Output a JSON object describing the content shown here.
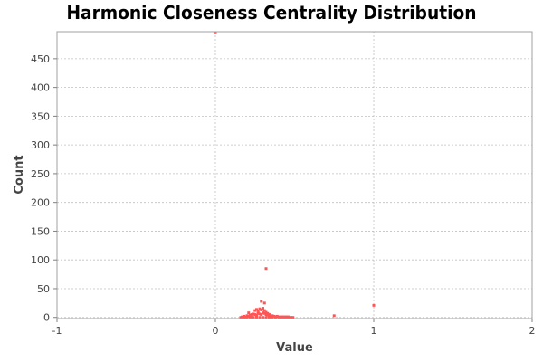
{
  "chart_data": {
    "type": "scatter",
    "title": "Harmonic Closeness Centrality Distribution",
    "xlabel": "Value",
    "ylabel": "Count",
    "xlim": [
      -1,
      2
    ],
    "ylim": [
      -2,
      497
    ],
    "x_ticks": [
      -1,
      0,
      1,
      2
    ],
    "y_ticks": [
      0,
      50,
      100,
      150,
      200,
      250,
      300,
      350,
      400,
      450
    ],
    "grid": true,
    "legend": "none",
    "colors": {
      "points": "#ff5555",
      "grid": "#c0c0c0",
      "plot_background": "#ffffff",
      "axis": "#808080"
    },
    "points": [
      [
        0.0,
        495
      ],
      [
        0.32,
        85
      ],
      [
        0.29,
        28
      ],
      [
        0.31,
        25
      ],
      [
        1.0,
        21
      ],
      [
        0.75,
        3
      ],
      [
        0.21,
        8
      ],
      [
        0.23,
        5
      ],
      [
        0.25,
        12
      ],
      [
        0.26,
        14
      ],
      [
        0.27,
        10
      ],
      [
        0.28,
        15
      ],
      [
        0.29,
        13
      ],
      [
        0.3,
        16
      ],
      [
        0.31,
        12
      ],
      [
        0.32,
        9
      ],
      [
        0.33,
        7
      ],
      [
        0.34,
        5
      ],
      [
        0.17,
        1
      ],
      [
        0.18,
        2
      ],
      [
        0.19,
        1
      ],
      [
        0.2,
        3
      ],
      [
        0.21,
        2
      ],
      [
        0.22,
        4
      ],
      [
        0.23,
        3
      ],
      [
        0.24,
        6
      ],
      [
        0.25,
        5
      ],
      [
        0.26,
        4
      ],
      [
        0.27,
        7
      ],
      [
        0.28,
        6
      ],
      [
        0.29,
        5
      ],
      [
        0.3,
        8
      ],
      [
        0.31,
        7
      ],
      [
        0.32,
        5
      ],
      [
        0.33,
        4
      ],
      [
        0.34,
        3
      ],
      [
        0.35,
        2
      ],
      [
        0.36,
        3
      ],
      [
        0.37,
        2
      ],
      [
        0.38,
        1
      ],
      [
        0.39,
        2
      ],
      [
        0.4,
        1
      ],
      [
        0.41,
        1
      ],
      [
        0.42,
        1
      ],
      [
        0.43,
        1
      ],
      [
        0.44,
        0
      ],
      [
        0.45,
        1
      ],
      [
        0.46,
        0
      ],
      [
        0.47,
        0
      ],
      [
        0.48,
        0
      ],
      [
        0.49,
        0
      ],
      [
        0.16,
        0
      ],
      [
        0.17,
        0
      ],
      [
        0.18,
        0
      ],
      [
        0.19,
        0
      ],
      [
        0.2,
        0
      ],
      [
        0.22,
        0
      ],
      [
        0.24,
        0
      ],
      [
        0.26,
        0
      ],
      [
        0.28,
        0
      ],
      [
        0.3,
        0
      ],
      [
        0.32,
        0
      ],
      [
        0.34,
        0
      ],
      [
        0.36,
        0
      ],
      [
        0.38,
        0
      ],
      [
        0.4,
        0
      ],
      [
        0.42,
        0
      ],
      [
        0.44,
        1
      ],
      [
        0.46,
        1
      ]
    ]
  }
}
